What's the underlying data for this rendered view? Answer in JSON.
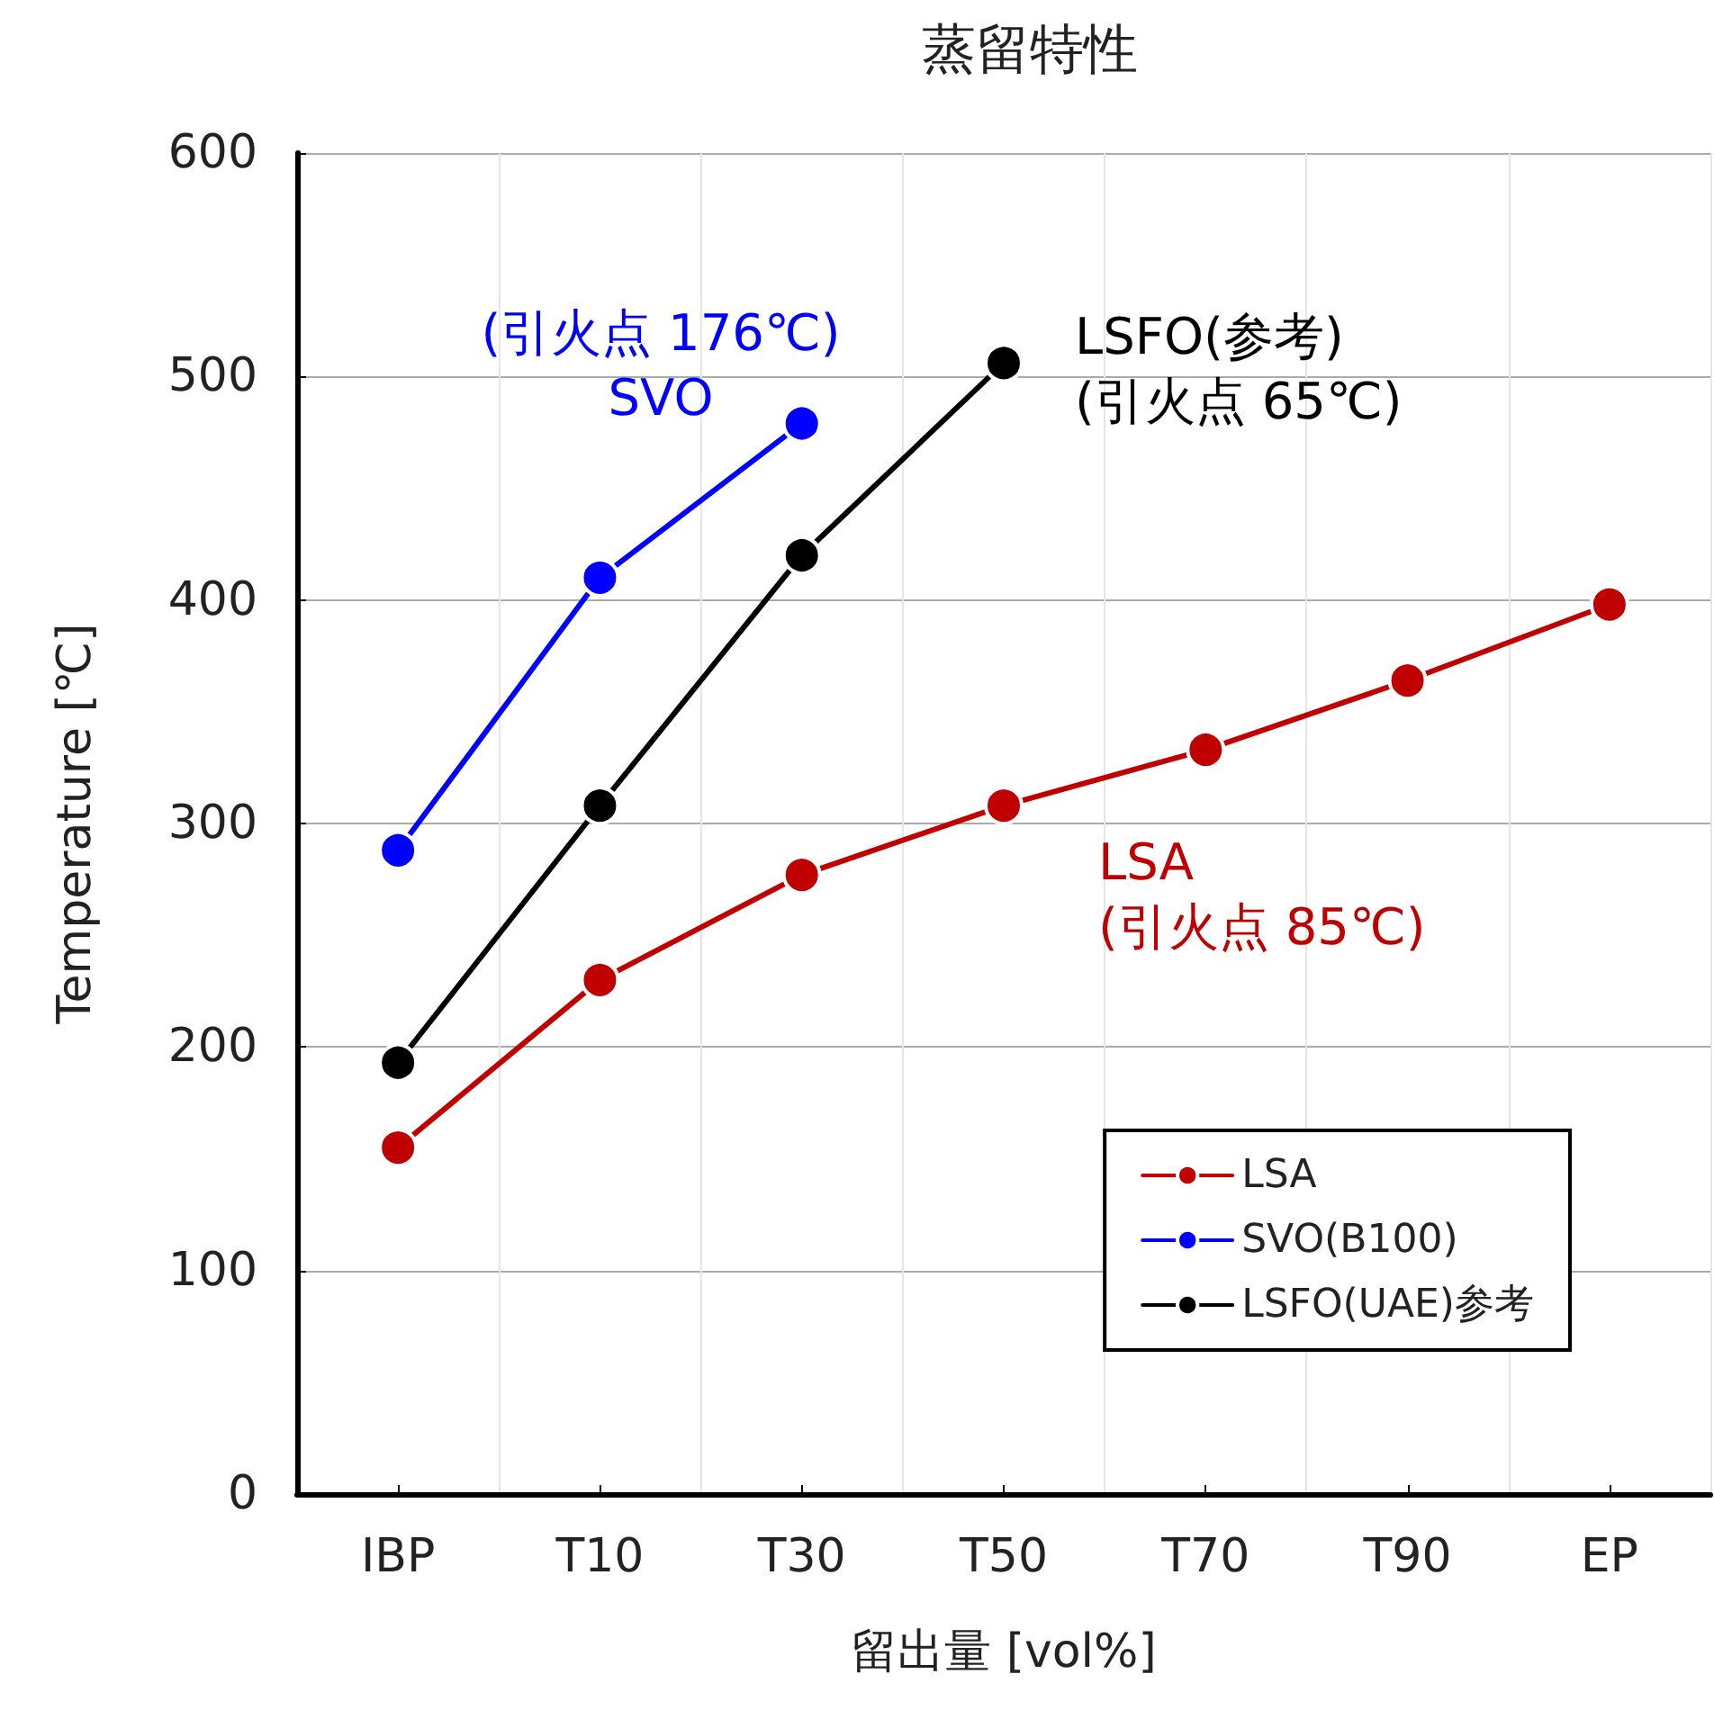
{
  "chart_data": {
    "type": "line",
    "title": "蒸留特性",
    "xlabel": "留出量 [vol%]",
    "ylabel": "Temperature [℃]",
    "categories": [
      "IBP",
      "T10",
      "T30",
      "T50",
      "T70",
      "T90",
      "EP"
    ],
    "series": [
      {
        "name": "LSA",
        "color": "#c00000",
        "values": [
          155,
          230,
          277,
          308,
          333,
          364,
          398
        ]
      },
      {
        "name": "SVO(B100)",
        "color": "#0000ff",
        "values": [
          288,
          410,
          479,
          null,
          null,
          null,
          null
        ]
      },
      {
        "name": "LSFO(UAE)参考",
        "color": "#000000",
        "values": [
          193,
          308,
          420,
          506,
          null,
          null,
          null
        ]
      }
    ],
    "ylim": [
      0,
      600
    ],
    "yticks": [
      0,
      100,
      200,
      300,
      400,
      500,
      600
    ],
    "grid": true,
    "legend": "bottom right",
    "marker": "circle",
    "line_style": "solid",
    "annotations": [
      "LSA\n(引火点 85℃)",
      "(引火点 176℃)\nSVO",
      "LSFO(参考)\n(引火点 65℃)"
    ]
  }
}
